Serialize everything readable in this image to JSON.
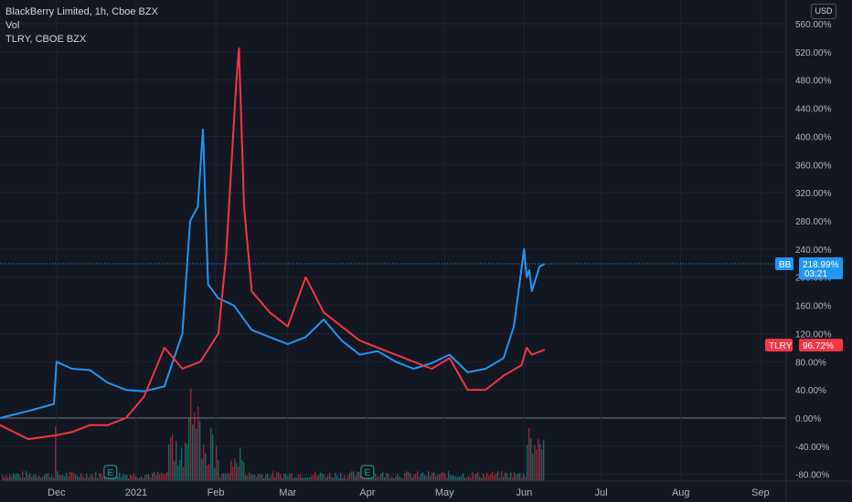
{
  "legend": {
    "line1": "BlackBerry Limited, 1h, Cboe BZX",
    "line2": "Vol",
    "line3": "TLRY, CBOE BZX"
  },
  "currency": "USD",
  "colors": {
    "background": "#131722",
    "bb": "#2196f3",
    "tlry": "#f23645",
    "grid": "#1f2433",
    "zero_line": "#787b86"
  },
  "tags": {
    "bb": {
      "symbol": "BB",
      "value": "218.99%",
      "countdown": "03:21"
    },
    "tlry": {
      "symbol": "TLRY",
      "value": "96.72%"
    }
  },
  "chart_data": {
    "type": "line",
    "y_unit": "percent change",
    "ylim": [
      -90,
      580
    ],
    "y_ticks": [
      "560.00%",
      "520.00%",
      "480.00%",
      "440.00%",
      "400.00%",
      "360.00%",
      "320.00%",
      "280.00%",
      "240.00%",
      "200.00%",
      "160.00%",
      "120.00%",
      "80.00%",
      "40.00%",
      "0.00%",
      "-40.00%",
      "-80.00%"
    ],
    "y_tick_values": [
      560,
      520,
      480,
      440,
      400,
      360,
      320,
      280,
      240,
      200,
      160,
      120,
      80,
      40,
      0,
      -40,
      -80
    ],
    "x_ticks": [
      "Dec",
      "2021",
      "Feb",
      "Mar",
      "Apr",
      "May",
      "Jun",
      "Jul",
      "Aug",
      "Sep"
    ],
    "x_tick_dates": [
      "2020-12-01",
      "2021-01-01",
      "2021-02-01",
      "2021-03-01",
      "2021-04-01",
      "2021-05-01",
      "2021-06-01",
      "2021-07-01",
      "2021-08-01",
      "2021-09-01"
    ],
    "x_range": [
      "2020-11-09",
      "2021-09-11"
    ],
    "earnings_markers": [
      {
        "label": "E",
        "date": "2020-12-22"
      },
      {
        "label": "E",
        "date": "2021-04-01"
      }
    ],
    "series": [
      {
        "name": "BB",
        "x": [
          "2020-11-09",
          "2020-11-20",
          "2020-11-30",
          "2020-12-01",
          "2020-12-07",
          "2020-12-14",
          "2020-12-21",
          "2020-12-28",
          "2021-01-04",
          "2021-01-12",
          "2021-01-19",
          "2021-01-22",
          "2021-01-25",
          "2021-01-27",
          "2021-01-29",
          "2021-02-02",
          "2021-02-08",
          "2021-02-15",
          "2021-02-22",
          "2021-03-01",
          "2021-03-08",
          "2021-03-15",
          "2021-03-22",
          "2021-03-29",
          "2021-04-05",
          "2021-04-12",
          "2021-04-19",
          "2021-04-26",
          "2021-05-03",
          "2021-05-10",
          "2021-05-17",
          "2021-05-24",
          "2021-05-28",
          "2021-06-01",
          "2021-06-02",
          "2021-06-03",
          "2021-06-04",
          "2021-06-07",
          "2021-06-09"
        ],
        "values": [
          0,
          10,
          20,
          80,
          70,
          68,
          50,
          40,
          38,
          45,
          120,
          280,
          300,
          410,
          190,
          170,
          160,
          125,
          115,
          105,
          115,
          140,
          110,
          90,
          95,
          80,
          70,
          78,
          90,
          65,
          70,
          85,
          130,
          240,
          200,
          210,
          180,
          215,
          219
        ]
      },
      {
        "name": "TLRY",
        "x": [
          "2020-11-09",
          "2020-11-20",
          "2020-11-30",
          "2020-12-07",
          "2020-12-14",
          "2020-12-21",
          "2020-12-28",
          "2021-01-04",
          "2021-01-12",
          "2021-01-19",
          "2021-01-26",
          "2021-02-02",
          "2021-02-05",
          "2021-02-09",
          "2021-02-10",
          "2021-02-12",
          "2021-02-15",
          "2021-02-22",
          "2021-03-01",
          "2021-03-08",
          "2021-03-15",
          "2021-03-22",
          "2021-03-29",
          "2021-04-05",
          "2021-04-12",
          "2021-04-19",
          "2021-04-26",
          "2021-05-03",
          "2021-05-10",
          "2021-05-17",
          "2021-05-24",
          "2021-05-31",
          "2021-06-02",
          "2021-06-04",
          "2021-06-09"
        ],
        "values": [
          -10,
          -30,
          -25,
          -20,
          -10,
          -10,
          0,
          30,
          100,
          70,
          80,
          120,
          230,
          480,
          525,
          300,
          180,
          150,
          130,
          200,
          150,
          130,
          110,
          100,
          90,
          80,
          70,
          85,
          40,
          40,
          60,
          75,
          100,
          90,
          97
        ]
      }
    ]
  }
}
